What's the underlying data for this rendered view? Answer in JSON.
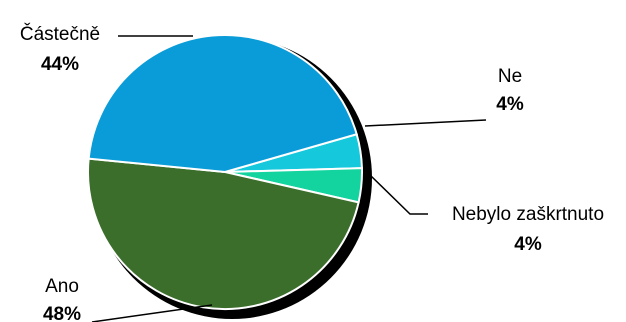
{
  "chart_data": {
    "type": "pie",
    "slices": [
      {
        "label": "Částečně",
        "percent_label": "44%",
        "value": 44,
        "color": "#0a9cd8"
      },
      {
        "label": "Ne",
        "percent_label": "4%",
        "value": 4,
        "color": "#15c8dc"
      },
      {
        "label": "Nebylo zaškrtnuto",
        "percent_label": "4%",
        "value": 4,
        "color": "#13d49e"
      },
      {
        "label": "Ano",
        "percent_label": "48%",
        "value": 48,
        "color": "#3a6e2a"
      }
    ],
    "legend": "none"
  }
}
